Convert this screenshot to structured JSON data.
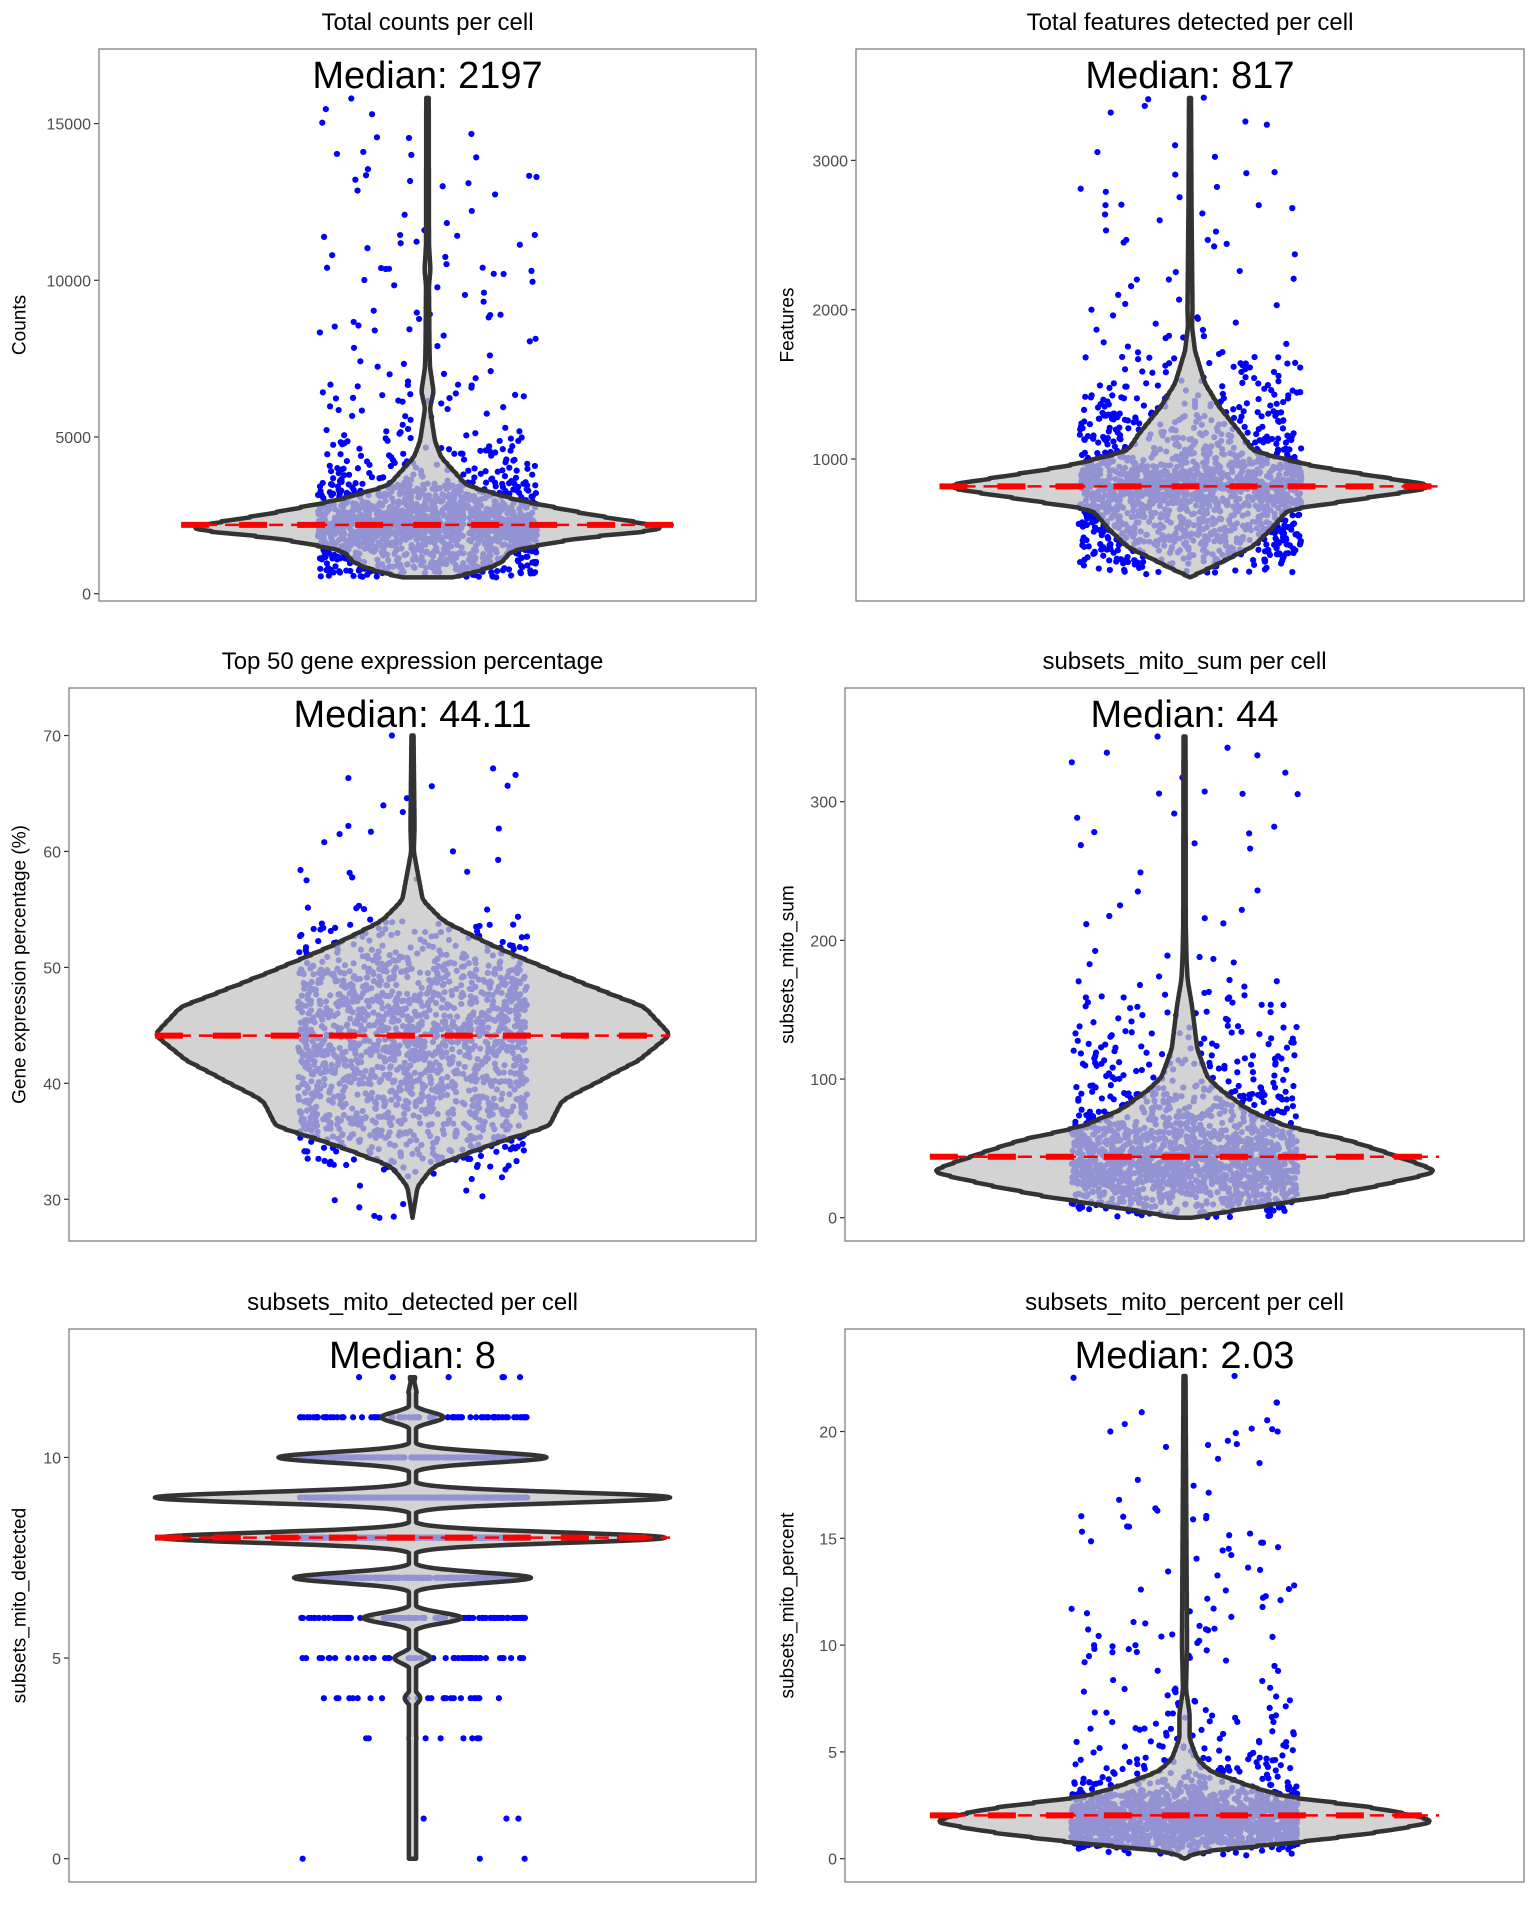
{
  "chart_data": [
    {
      "type": "violin",
      "title": "Total counts per cell",
      "ylabel": "Counts",
      "median_label": "Median: 2197",
      "median": 2197,
      "ylim": [
        -234,
        17380
      ],
      "yticks": [
        0,
        5000,
        10000,
        15000
      ],
      "grid": false,
      "violin_profile": [
        [
          520,
          0.1
        ],
        [
          700,
          0.2
        ],
        [
          980,
          0.3
        ],
        [
          1370,
          0.34
        ],
        [
          1760,
          0.6
        ],
        [
          2080,
          1.0
        ],
        [
          2540,
          0.65
        ],
        [
          3000,
          0.36
        ],
        [
          3450,
          0.16
        ],
        [
          3970,
          0.1
        ],
        [
          4360,
          0.055
        ],
        [
          4880,
          0.03
        ],
        [
          5920,
          0.01
        ],
        [
          6450,
          0.025
        ],
        [
          7230,
          0.01
        ],
        [
          7880,
          0.008
        ],
        [
          9830,
          0.006
        ],
        [
          10350,
          0.012
        ],
        [
          11130,
          0.006
        ],
        [
          15820,
          0.005
        ]
      ],
      "outliers": [
        15800,
        15300,
        10800,
        10400,
        10300,
        8900,
        8400,
        7900,
        7100,
        7000
      ],
      "point_color": "#0000ff"
    },
    {
      "type": "violin",
      "title": "Total features detected per cell",
      "ylabel": "Features",
      "median_label": "Median: 817",
      "median": 817,
      "ylim": [
        49,
        3746
      ],
      "yticks": [
        1000,
        2000,
        3000
      ],
      "grid": false,
      "violin_profile": [
        [
          208,
          0.0
        ],
        [
          304,
          0.12
        ],
        [
          413,
          0.25
        ],
        [
          522,
          0.32
        ],
        [
          659,
          0.39
        ],
        [
          815,
          1.0
        ],
        [
          959,
          0.47
        ],
        [
          1055,
          0.25
        ],
        [
          1178,
          0.2
        ],
        [
          1342,
          0.12
        ],
        [
          1505,
          0.06
        ],
        [
          1724,
          0.02
        ],
        [
          1888,
          0.008
        ],
        [
          2000,
          0.01
        ],
        [
          2710,
          0.006
        ],
        [
          3418,
          0.004
        ]
      ],
      "outliers": [
        3420,
        3320,
        2810,
        2700,
        2700,
        2450,
        2030,
        2000
      ],
      "point_color": "#0000ff"
    },
    {
      "type": "violin",
      "title": "Top 50 gene expression percentage",
      "ylabel": "Gene expression percentage (%)",
      "median_label": "Median: 44.11",
      "median": 44.11,
      "ylim": [
        26.4,
        74.1
      ],
      "yticks": [
        30,
        40,
        50,
        60,
        70
      ],
      "grid": false,
      "violin_profile": [
        [
          28.4,
          0.0
        ],
        [
          31.1,
          0.02
        ],
        [
          32.8,
          0.08
        ],
        [
          34.6,
          0.29
        ],
        [
          36.3,
          0.53
        ],
        [
          38.5,
          0.58
        ],
        [
          39.9,
          0.7
        ],
        [
          42,
          0.88
        ],
        [
          44.2,
          1.0
        ],
        [
          46.6,
          0.9
        ],
        [
          48.3,
          0.7
        ],
        [
          50.1,
          0.5
        ],
        [
          51.9,
          0.31
        ],
        [
          54,
          0.12
        ],
        [
          55.8,
          0.04
        ],
        [
          58.2,
          0.02
        ],
        [
          60,
          0.005
        ],
        [
          62.1,
          0.008
        ],
        [
          70,
          0.004
        ]
      ],
      "outliers": [
        70,
        63.4,
        62.2,
        61.7,
        61.5,
        60.8,
        28.5,
        28.4,
        29.3
      ],
      "point_color": "#0000ff"
    },
    {
      "type": "violin",
      "title": "subsets_mito_sum per cell",
      "ylabel": "subsets_mito_sum",
      "median_label": "Median: 44",
      "median": 44,
      "ylim": [
        -16.8,
        382
      ],
      "yticks": [
        0,
        100,
        200,
        300
      ],
      "grid": false,
      "violin_profile": [
        [
          0,
          0.03
        ],
        [
          6.8,
          0.25
        ],
        [
          15.7,
          0.56
        ],
        [
          24.6,
          0.8
        ],
        [
          33.4,
          1.0
        ],
        [
          45.3,
          0.82
        ],
        [
          55.6,
          0.65
        ],
        [
          66,
          0.4
        ],
        [
          77.8,
          0.25
        ],
        [
          92.6,
          0.14
        ],
        [
          101.5,
          0.09
        ],
        [
          122,
          0.05
        ],
        [
          152,
          0.03
        ],
        [
          172,
          0.012
        ],
        [
          187,
          0.008
        ],
        [
          211,
          0.005
        ],
        [
          347,
          0.004
        ]
      ],
      "outliers": [
        347,
        282,
        270,
        249,
        236,
        216,
        189,
        188
      ],
      "point_color": "#0000ff"
    },
    {
      "type": "violin",
      "title": "subsets_mito_detected per cell",
      "ylabel": "subsets_mito_detected",
      "median_label": "Median: 8",
      "median": 8,
      "ylim": [
        -0.58,
        13.2
      ],
      "yticks": [
        0,
        5,
        10
      ],
      "grid": false,
      "discrete_counts": {
        "0": 3,
        "1": 3,
        "3": 8,
        "4": 25,
        "5": 50,
        "6": 130,
        "7": 330,
        "8": 480,
        "9": 520,
        "10": 260,
        "11": 80,
        "12": 6
      },
      "violin_peak_widths": {
        "3": 0.015,
        "4": 0.03,
        "5": 0.07,
        "6": 0.19,
        "7": 0.46,
        "8": 0.98,
        "9": 1.0,
        "10": 0.52,
        "11": 0.12,
        "12": 0.01
      },
      "point_color": "#0000ff"
    },
    {
      "type": "violin",
      "title": "subsets_mito_percent per cell",
      "ylabel": "subsets_mito_percent",
      "median_label": "Median: 2.03",
      "median": 2.03,
      "ylim": [
        -1.09,
        24.8
      ],
      "yticks": [
        0,
        5,
        10,
        15,
        20
      ],
      "grid": false,
      "violin_profile": [
        [
          0,
          0.0
        ],
        [
          0.35,
          0.06
        ],
        [
          0.73,
          0.42
        ],
        [
          1.21,
          0.75
        ],
        [
          1.75,
          1.0
        ],
        [
          2.37,
          0.76
        ],
        [
          2.94,
          0.38
        ],
        [
          3.52,
          0.23
        ],
        [
          4.1,
          0.1
        ],
        [
          4.67,
          0.05
        ],
        [
          5.63,
          0.02
        ],
        [
          6.8,
          0.02
        ],
        [
          7.9,
          0.006
        ],
        [
          10,
          0.01
        ],
        [
          22.6,
          0.004
        ]
      ],
      "outliers": [
        22.6,
        20,
        10.5,
        10.4,
        10.2,
        10.1,
        9.2,
        8.8,
        8
      ],
      "point_color": "#0000ff"
    }
  ],
  "colors": {
    "violin_fill": "#c4c4c4",
    "violin_outline": "#333333",
    "median_line": "#ff0000",
    "points": "#0000ff"
  }
}
